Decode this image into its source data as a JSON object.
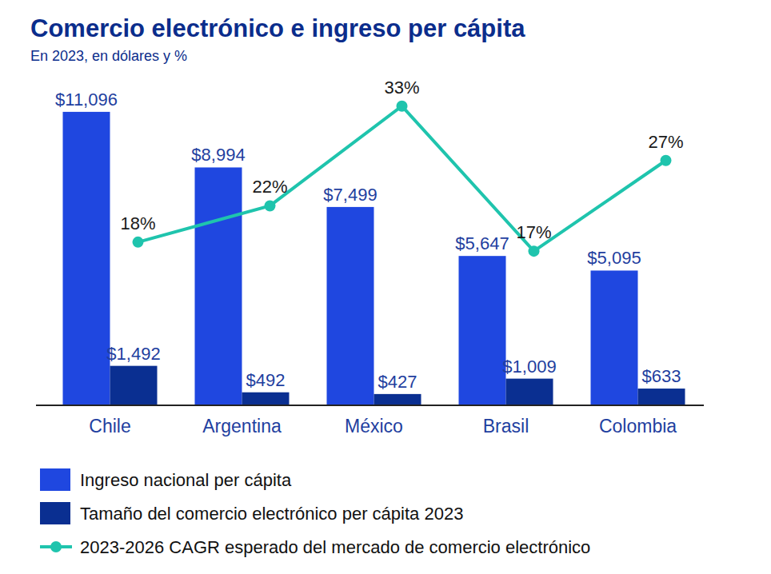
{
  "chart_data": {
    "type": "bar",
    "title": "Comercio electrónico e ingreso per cápita",
    "subtitle": "En 2023, en dólares y %",
    "categories": [
      "Chile",
      "Argentina",
      "México",
      "Brasil",
      "Colombia"
    ],
    "series": [
      {
        "name": "Ingreso nacional per cápita",
        "color": "#1f47e0",
        "values": [
          11096,
          8994,
          7499,
          5647,
          5095
        ],
        "value_labels": [
          "$11,096",
          "$8,994",
          "$7,499",
          "$5,647",
          "$5,095"
        ]
      },
      {
        "name": "Tamaño del comercio electrónico per cápita 2023",
        "color": "#0a2f91",
        "values": [
          1492,
          492,
          427,
          1009,
          633
        ],
        "value_labels": [
          "$1,492",
          "$492",
          "$427",
          "$1,009",
          "$633"
        ]
      },
      {
        "name": "2023-2026 CAGR esperado del mercado de comercio electrónico",
        "type": "line",
        "axis": "y2",
        "color": "#1fc4ad",
        "marker": "circle",
        "values": [
          18,
          22,
          33,
          17,
          27
        ],
        "value_labels": [
          "18%",
          "22%",
          "33%",
          "17%",
          "27%"
        ]
      }
    ],
    "ylim": [
      0,
      12000
    ],
    "y2lim": [
      0,
      35
    ],
    "data_labels": true,
    "tick_labels": "x",
    "legend": "bottom"
  }
}
